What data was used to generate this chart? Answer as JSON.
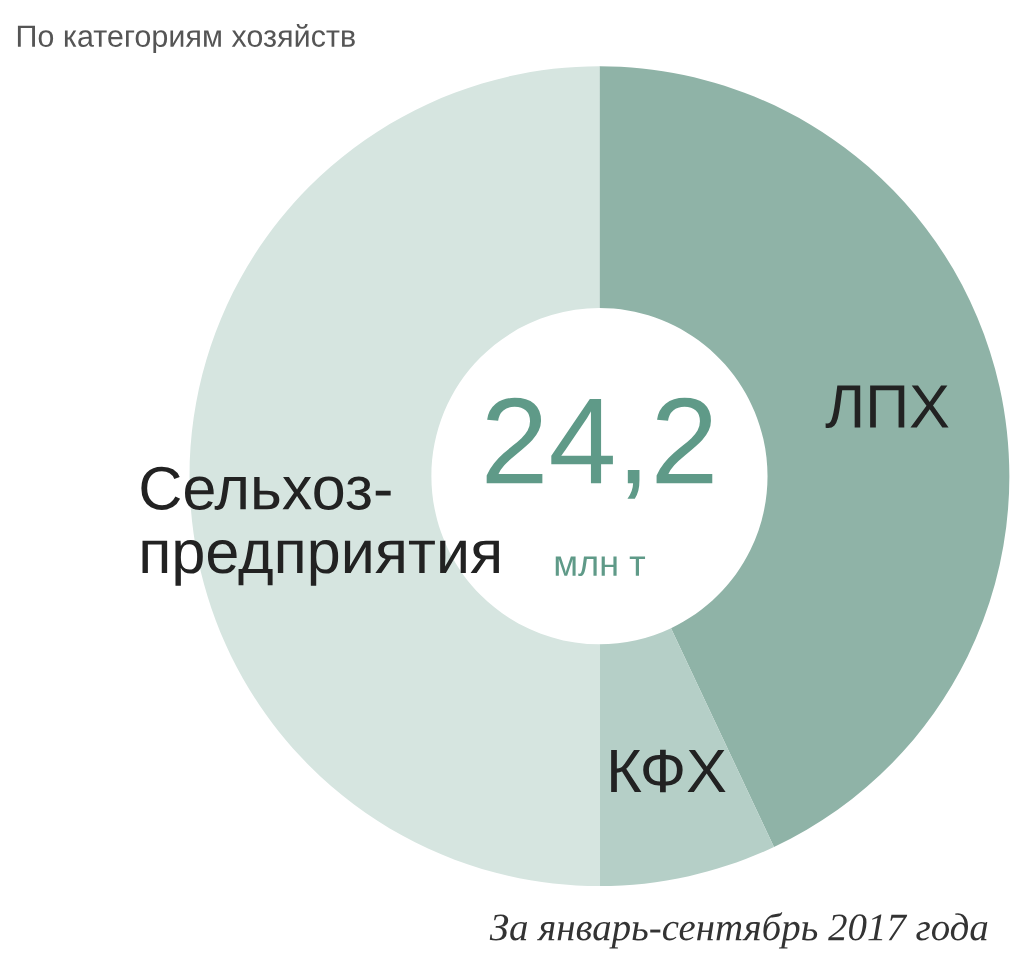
{
  "chart_data": {
    "type": "donut",
    "title": "По категориям хозяйств",
    "categories": [
      "ЛПХ",
      "КФХ",
      "Сельхоз-\nпредприятия"
    ],
    "values": [
      43,
      7,
      50
    ],
    "colors": [
      "#8fb3a7",
      "#b5cfc7",
      "#d6e5e0"
    ],
    "annotations": [
      "24,2",
      "млн т",
      "За январь-сентябрь 2017 года"
    ]
  }
}
